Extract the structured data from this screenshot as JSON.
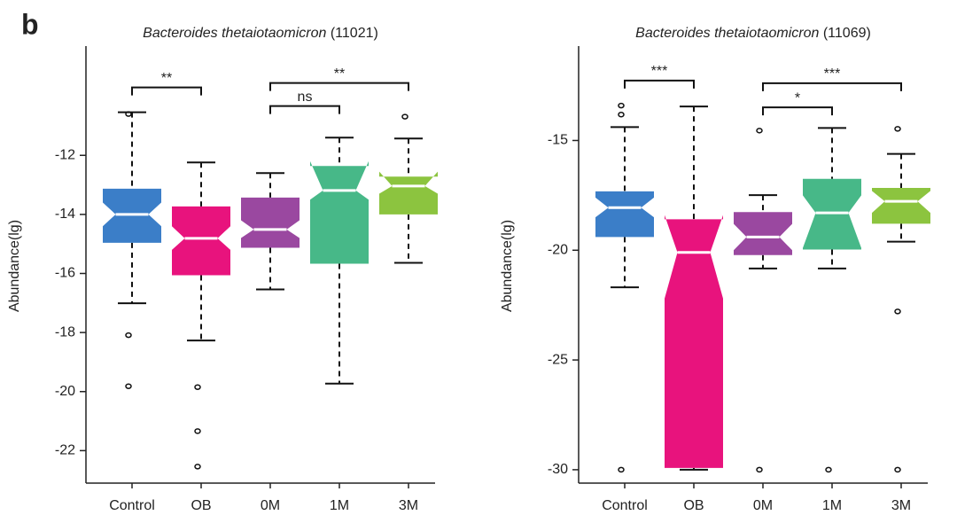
{
  "panel_label": "b",
  "chart_data": [
    {
      "type": "box",
      "title": {
        "species": "Bacteroides thetaiotaomicron",
        "strain": "(11021)"
      },
      "ylabel": "Abundance(lg)",
      "categories": [
        "Control",
        "OB",
        "0M",
        "1M",
        "3M"
      ],
      "colors": [
        "#3b7ec8",
        "#e8137d",
        "#9a48a0",
        "#47b888",
        "#8cc43f"
      ],
      "ylim": [
        -23.1,
        -8.3
      ],
      "yticks": [
        -22,
        -20,
        -18,
        -16,
        -14,
        -12
      ],
      "boxes": [
        {
          "whislo": -17.01,
          "q1": -14.96,
          "med": -14.0,
          "q3": -13.13,
          "whishi": -10.54,
          "notch": [
            -14.4,
            -13.6
          ],
          "fliers": [
            -10.6,
            -18.09,
            -19.82
          ]
        },
        {
          "whislo": -18.27,
          "q1": -16.06,
          "med": -14.81,
          "q3": -13.73,
          "whishi": -12.24,
          "notch": [
            -15.2,
            -14.4
          ],
          "fliers": [
            -19.85,
            -21.34,
            -22.54
          ]
        },
        {
          "whislo": -16.54,
          "q1": -15.13,
          "med": -14.51,
          "q3": -13.43,
          "whishi": -12.6,
          "notch": [
            -14.8,
            -14.2
          ],
          "fliers": []
        },
        {
          "whislo": -19.73,
          "q1": -15.67,
          "med": -13.19,
          "q3": -12.36,
          "whishi": -11.4,
          "notch": [
            -13.5,
            -12.2
          ],
          "fliers": []
        },
        {
          "whislo": -15.64,
          "q1": -14.0,
          "med": -13.04,
          "q3": -12.72,
          "whishi": -11.43,
          "notch": [
            -13.3,
            -12.55
          ],
          "fliers": [
            -10.69
          ]
        }
      ],
      "comparisons": [
        {
          "pair": [
            "Control",
            "OB"
          ],
          "y": -9.7,
          "label": "**"
        },
        {
          "pair": [
            "0M",
            "3M"
          ],
          "y": -9.55,
          "label": "**"
        },
        {
          "pair": [
            "0M",
            "1M"
          ],
          "y": -10.33,
          "label": "ns"
        }
      ]
    },
    {
      "type": "box",
      "title": {
        "species": "Bacteroides thetaiotaomicron",
        "strain": "(11069)"
      },
      "ylabel": "Abundance(lg)",
      "categories": [
        "Control",
        "OB",
        "0M",
        "1M",
        "3M"
      ],
      "colors": [
        "#3b7ec8",
        "#e8137d",
        "#9a48a0",
        "#47b888",
        "#8cc43f"
      ],
      "ylim": [
        -30.61,
        -10.7
      ],
      "yticks": [
        -30,
        -25,
        -20,
        -15
      ],
      "boxes": [
        {
          "whislo": -21.69,
          "q1": -19.4,
          "med": -18.06,
          "q3": -17.32,
          "whishi": -14.39,
          "notch": [
            -18.5,
            -17.6
          ],
          "fliers": [
            -13.41,
            -13.82,
            -30
          ]
        },
        {
          "whislo": -30,
          "q1": -29.92,
          "med": -20.1,
          "q3": -18.59,
          "whishi": -13.45,
          "notch": [
            -22.2,
            -18.4
          ],
          "fliers": []
        },
        {
          "whislo": -20.83,
          "q1": -20.22,
          "med": -19.4,
          "q3": -18.26,
          "whishi": -17.49,
          "notch": [
            -20.0,
            -18.8
          ],
          "fliers": [
            -14.55,
            -30
          ]
        },
        {
          "whislo": -20.83,
          "q1": -19.97,
          "med": -18.3,
          "q3": -16.75,
          "whishi": -14.43,
          "notch": [
            -19.9,
            -17.5
          ],
          "fliers": [
            -30
          ]
        },
        {
          "whislo": -19.61,
          "q1": -18.79,
          "med": -17.77,
          "q3": -17.16,
          "whishi": -15.61,
          "notch": [
            -18.3,
            -17.3
          ],
          "fliers": [
            -14.47,
            -22.79,
            -30
          ]
        }
      ],
      "comparisons": [
        {
          "pair": [
            "Control",
            "OB"
          ],
          "y": -12.27,
          "label": "***"
        },
        {
          "pair": [
            "0M",
            "3M"
          ],
          "y": -12.39,
          "label": "***"
        },
        {
          "pair": [
            "0M",
            "1M"
          ],
          "y": -13.49,
          "label": "*"
        }
      ]
    }
  ]
}
